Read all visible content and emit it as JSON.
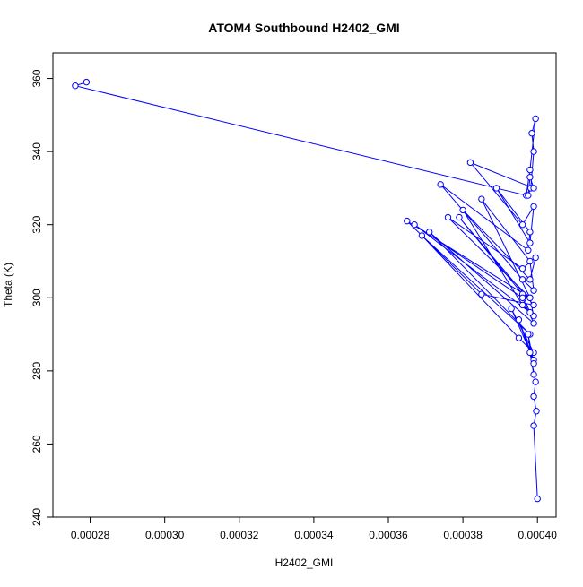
{
  "chart_data": {
    "type": "line",
    "title": "ATOM4 Southbound H2402_GMI",
    "xlabel": "H2402_GMI",
    "ylabel": "Theta (K)",
    "xlim": [
      0.00027,
      0.000405
    ],
    "ylim": [
      240,
      367
    ],
    "xticks": [
      0.00028,
      0.0003,
      0.00032,
      0.00034,
      0.00036,
      0.00038,
      0.0004
    ],
    "xtick_labels": [
      "0.00028",
      "0.00030",
      "0.00032",
      "0.00034",
      "0.00036",
      "0.00038",
      "0.00040"
    ],
    "yticks": [
      240,
      260,
      280,
      300,
      320,
      340,
      360
    ],
    "ytick_labels": [
      "240",
      "260",
      "280",
      "300",
      "320",
      "340",
      "360"
    ],
    "grid": false,
    "legend": "none",
    "markers": "open-circle",
    "color": "#0000ff",
    "series": [
      {
        "x": [
          0.000279,
          0.000276,
          0.000397,
          0.000398,
          0.0003995,
          0.0003985,
          0.000399,
          0.0003982,
          0.0003975,
          0.000398,
          0.000399,
          0.000382,
          0.000396,
          0.000399,
          0.000398,
          0.000389,
          0.000398,
          0.0003975,
          0.000374,
          0.000396,
          0.000399,
          0.000398,
          0.000385,
          0.000398,
          0.000376,
          0.000396,
          0.0003995,
          0.000398,
          0.00038,
          0.000396,
          0.000399,
          0.000398,
          0.000365,
          0.000385,
          0.000399,
          0.000379,
          0.000396,
          0.000398,
          0.000367,
          0.000396,
          0.000399,
          0.000371,
          0.000398,
          0.000369,
          0.000395,
          0.000399,
          0.000393,
          0.000399,
          0.000395,
          0.000399,
          0.0003975,
          0.000399,
          0.000398,
          0.0003995,
          0.000399,
          0.0003997,
          0.000399,
          0.0004
        ],
        "y": [
          359,
          358,
          328,
          335,
          349,
          345,
          340,
          330,
          328,
          333,
          330,
          337,
          320,
          325,
          315,
          330,
          318,
          313,
          331,
          305,
          302,
          310,
          327,
          300,
          322,
          308,
          311,
          305,
          324,
          298,
          295,
          300,
          321,
          301,
          298,
          322,
          301,
          296,
          320,
          300,
          293,
          318,
          290,
          317,
          289,
          285,
          297,
          283,
          294,
          282,
          290,
          279,
          285,
          277,
          273,
          269,
          265,
          245
        ]
      }
    ]
  }
}
